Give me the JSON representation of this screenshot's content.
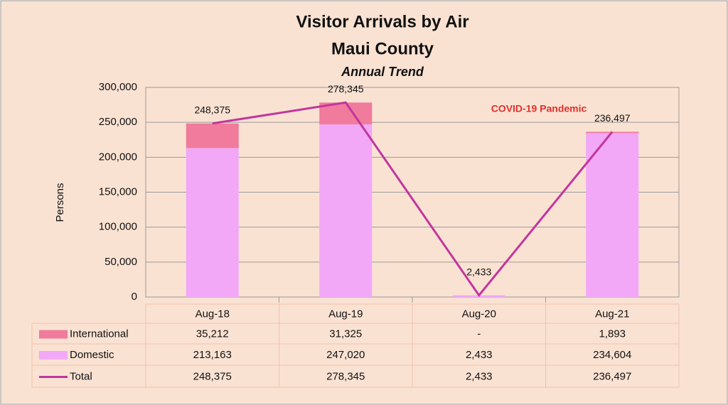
{
  "chart_data": {
    "type": "bar",
    "title": "Visitor Arrivals by Air",
    "subtitle": "Maui County",
    "subtitle2": "Annual Trend",
    "ylabel": "Persons",
    "annotation": "COVID-19 Pandemic",
    "stacked": true,
    "grid": true,
    "categories": [
      "Aug-18",
      "Aug-19",
      "Aug-20",
      "Aug-21"
    ],
    "series": [
      {
        "name": "International",
        "color": "#f07b9c",
        "values": [
          35212,
          31325,
          0,
          1893
        ],
        "value_labels": [
          "35,212",
          "31,325",
          "-",
          "1,893"
        ]
      },
      {
        "name": "Domestic",
        "color": "#f2a8f7",
        "values": [
          213163,
          247020,
          2433,
          234604
        ],
        "value_labels": [
          "213,163",
          "247,020",
          "2,433",
          "234,604"
        ]
      },
      {
        "name": "Total",
        "type": "line",
        "color": "#c2369e",
        "values": [
          248375,
          278345,
          2433,
          236497
        ],
        "value_labels": [
          "248,375",
          "278,345",
          "2,433",
          "236,497"
        ]
      }
    ],
    "ylim": [
      0,
      300000
    ],
    "yticks": [
      0,
      {
        "value": 50000,
        "label": "50,000"
      },
      {
        "value": 100000,
        "label": "100,000"
      },
      {
        "value": 150000,
        "label": "150,000"
      },
      {
        "value": 200000,
        "label": "200,000"
      },
      {
        "value": 250000,
        "label": "250,000"
      },
      {
        "value": 300000,
        "label": "300,000"
      }
    ]
  }
}
